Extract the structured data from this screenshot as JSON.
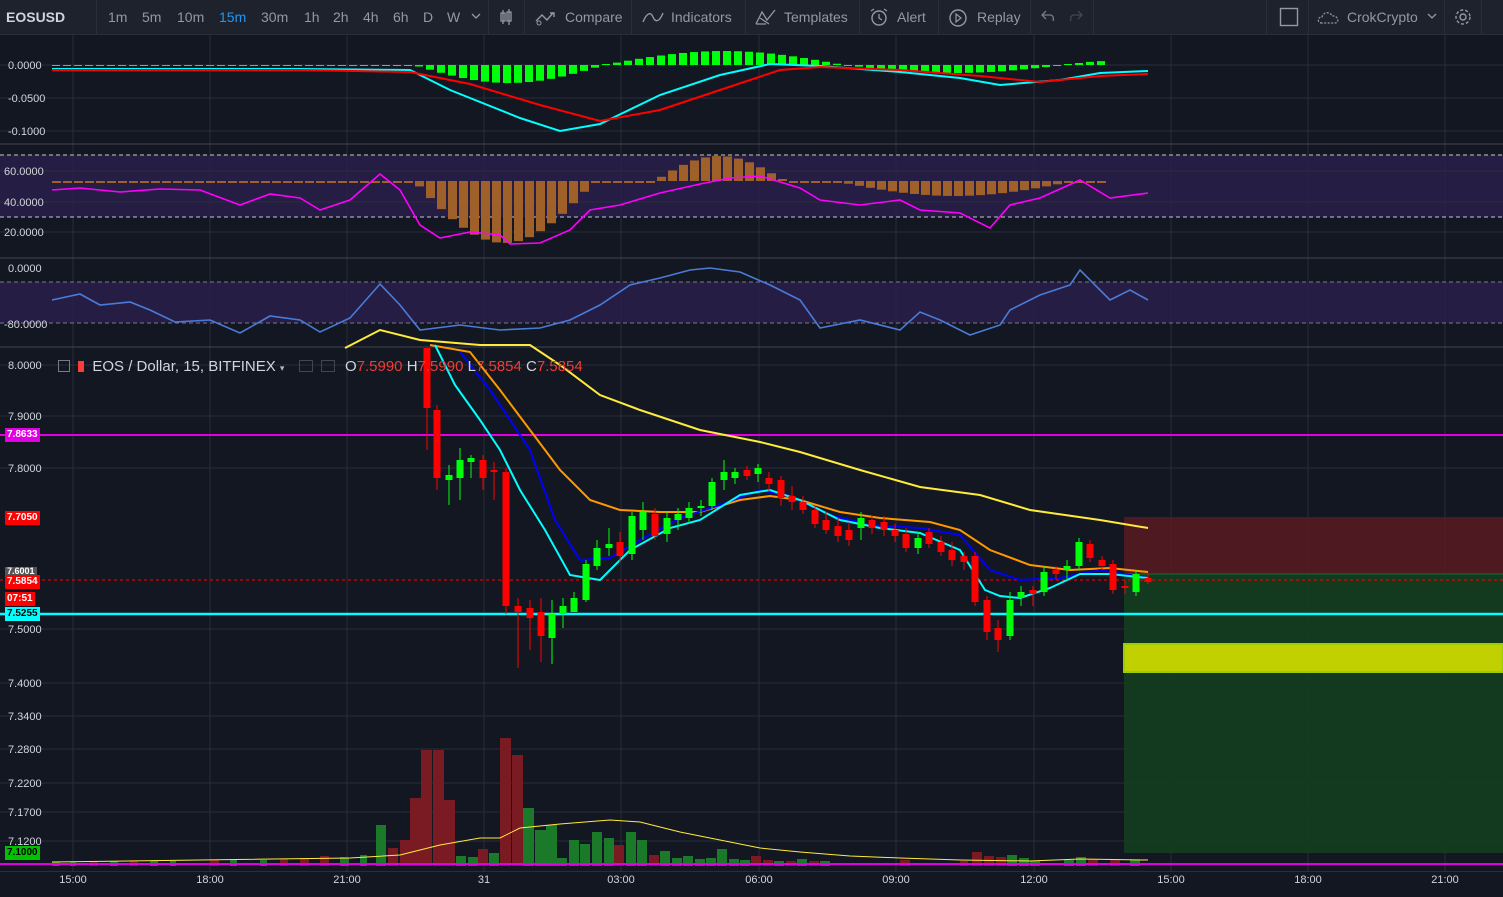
{
  "toolbar": {
    "symbol": "EOSUSD",
    "intervals": [
      "1m",
      "5m",
      "10m",
      "15m",
      "30m",
      "1h",
      "2h",
      "4h",
      "6h",
      "D",
      "W"
    ],
    "active_interval": "15m",
    "compare_label": "Compare",
    "indicators_label": "Indicators",
    "templates_label": "Templates",
    "alert_label": "Alert",
    "replay_label": "Replay",
    "account_label": "CrokCrypto"
  },
  "legend": {
    "title": "EOS / Dollar, 15, BITFINEX",
    "o_label": "O",
    "o_value": "7.5990",
    "h_label": "H",
    "h_value": "7.5990",
    "l_label": "L",
    "l_value": "7.5854",
    "c_label": "C",
    "c_value": "7.5854"
  },
  "panes": {
    "macd_ticks": [
      "0.0000",
      "-0.0500",
      "-0.1000"
    ],
    "rsi_ticks": [
      "60.0000",
      "40.0000",
      "20.0000"
    ],
    "osc_ticks": [
      "0.0000",
      "-80.0000"
    ],
    "price_ticks": [
      "8.0000",
      "7.9000",
      "7.8000",
      "7.5000",
      "7.4000",
      "7.3400",
      "7.2800",
      "7.2200",
      "7.1700",
      "7.1200"
    ]
  },
  "price_tags": {
    "magenta": "7.8633",
    "red_level": "7.7050",
    "partial": "7.6001",
    "current": "7.5854",
    "countdown": "07:51",
    "cyan": "7.5255",
    "green": "7.1000"
  },
  "time_axis": [
    "15:00",
    "18:00",
    "21:00",
    "31",
    "03:00",
    "06:00",
    "09:00",
    "12:00",
    "15:00",
    "18:00",
    "21:00"
  ],
  "colors": {
    "background": "#131722",
    "up": "#00ff0a",
    "down": "#ff0000",
    "magenta_line": "#e200e2",
    "cyan_line": "#00ffff",
    "ema_yellow": "#ffeb3b",
    "ema_orange": "#ff9800",
    "ema_blue": "#0000ff"
  },
  "icons": [
    "candle-style-icon",
    "compare-icon",
    "indicators-icon",
    "templates-icon",
    "alert-icon",
    "replay-icon",
    "undo-icon",
    "redo-icon",
    "fullscreen-icon",
    "cloud-icon",
    "settings-icon"
  ]
}
